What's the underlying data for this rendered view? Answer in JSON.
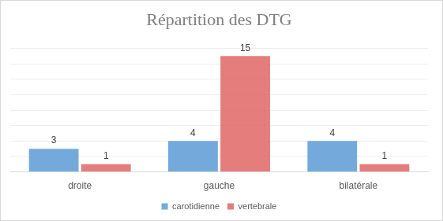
{
  "chart_data": {
    "type": "bar",
    "title": "Répartition des DTG",
    "categories": [
      "droite",
      "gauche",
      "bilatérale"
    ],
    "series": [
      {
        "name": "carotidienne",
        "color": "#5b9bd5",
        "values": [
          3,
          4,
          4
        ]
      },
      {
        "name": "vertebrale",
        "color": "#e06666",
        "values": [
          1,
          15,
          1
        ]
      }
    ],
    "ylim": [
      0,
      16
    ],
    "yticks": [
      0,
      2,
      4,
      6,
      8,
      10,
      12,
      14,
      16
    ],
    "grid": true,
    "legend": "bottom",
    "data_labels": true,
    "tick_labels": "x"
  }
}
